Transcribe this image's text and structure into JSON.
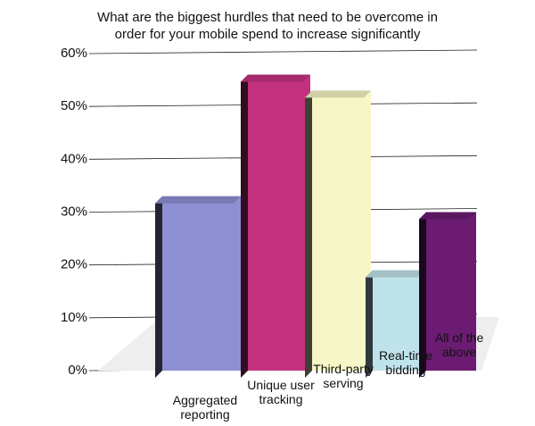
{
  "chart_data": {
    "type": "bar3d",
    "title": "What are the biggest hurdles that need to be overcome in order for your mobile spend to increase significantly",
    "categories": [
      "Aggregated reporting",
      "Unique user tracking",
      "Third-party serving",
      "Real-time bidding",
      "All of the above"
    ],
    "values": [
      33,
      56,
      53,
      19,
      30
    ],
    "colors": [
      "#8e8ed2",
      "#c4327f",
      "#f6f6c6",
      "#bfe3ea",
      "#6b1c72"
    ],
    "ylim": [
      0,
      60
    ],
    "yticks": [
      {
        "value": 0,
        "label": "0%"
      },
      {
        "value": 10,
        "label": "10%"
      },
      {
        "value": 20,
        "label": "20%"
      },
      {
        "value": 30,
        "label": "30%"
      },
      {
        "value": 40,
        "label": "40%"
      },
      {
        "value": 50,
        "label": "50%"
      },
      {
        "value": 60,
        "label": "60%"
      }
    ],
    "grid": true
  }
}
